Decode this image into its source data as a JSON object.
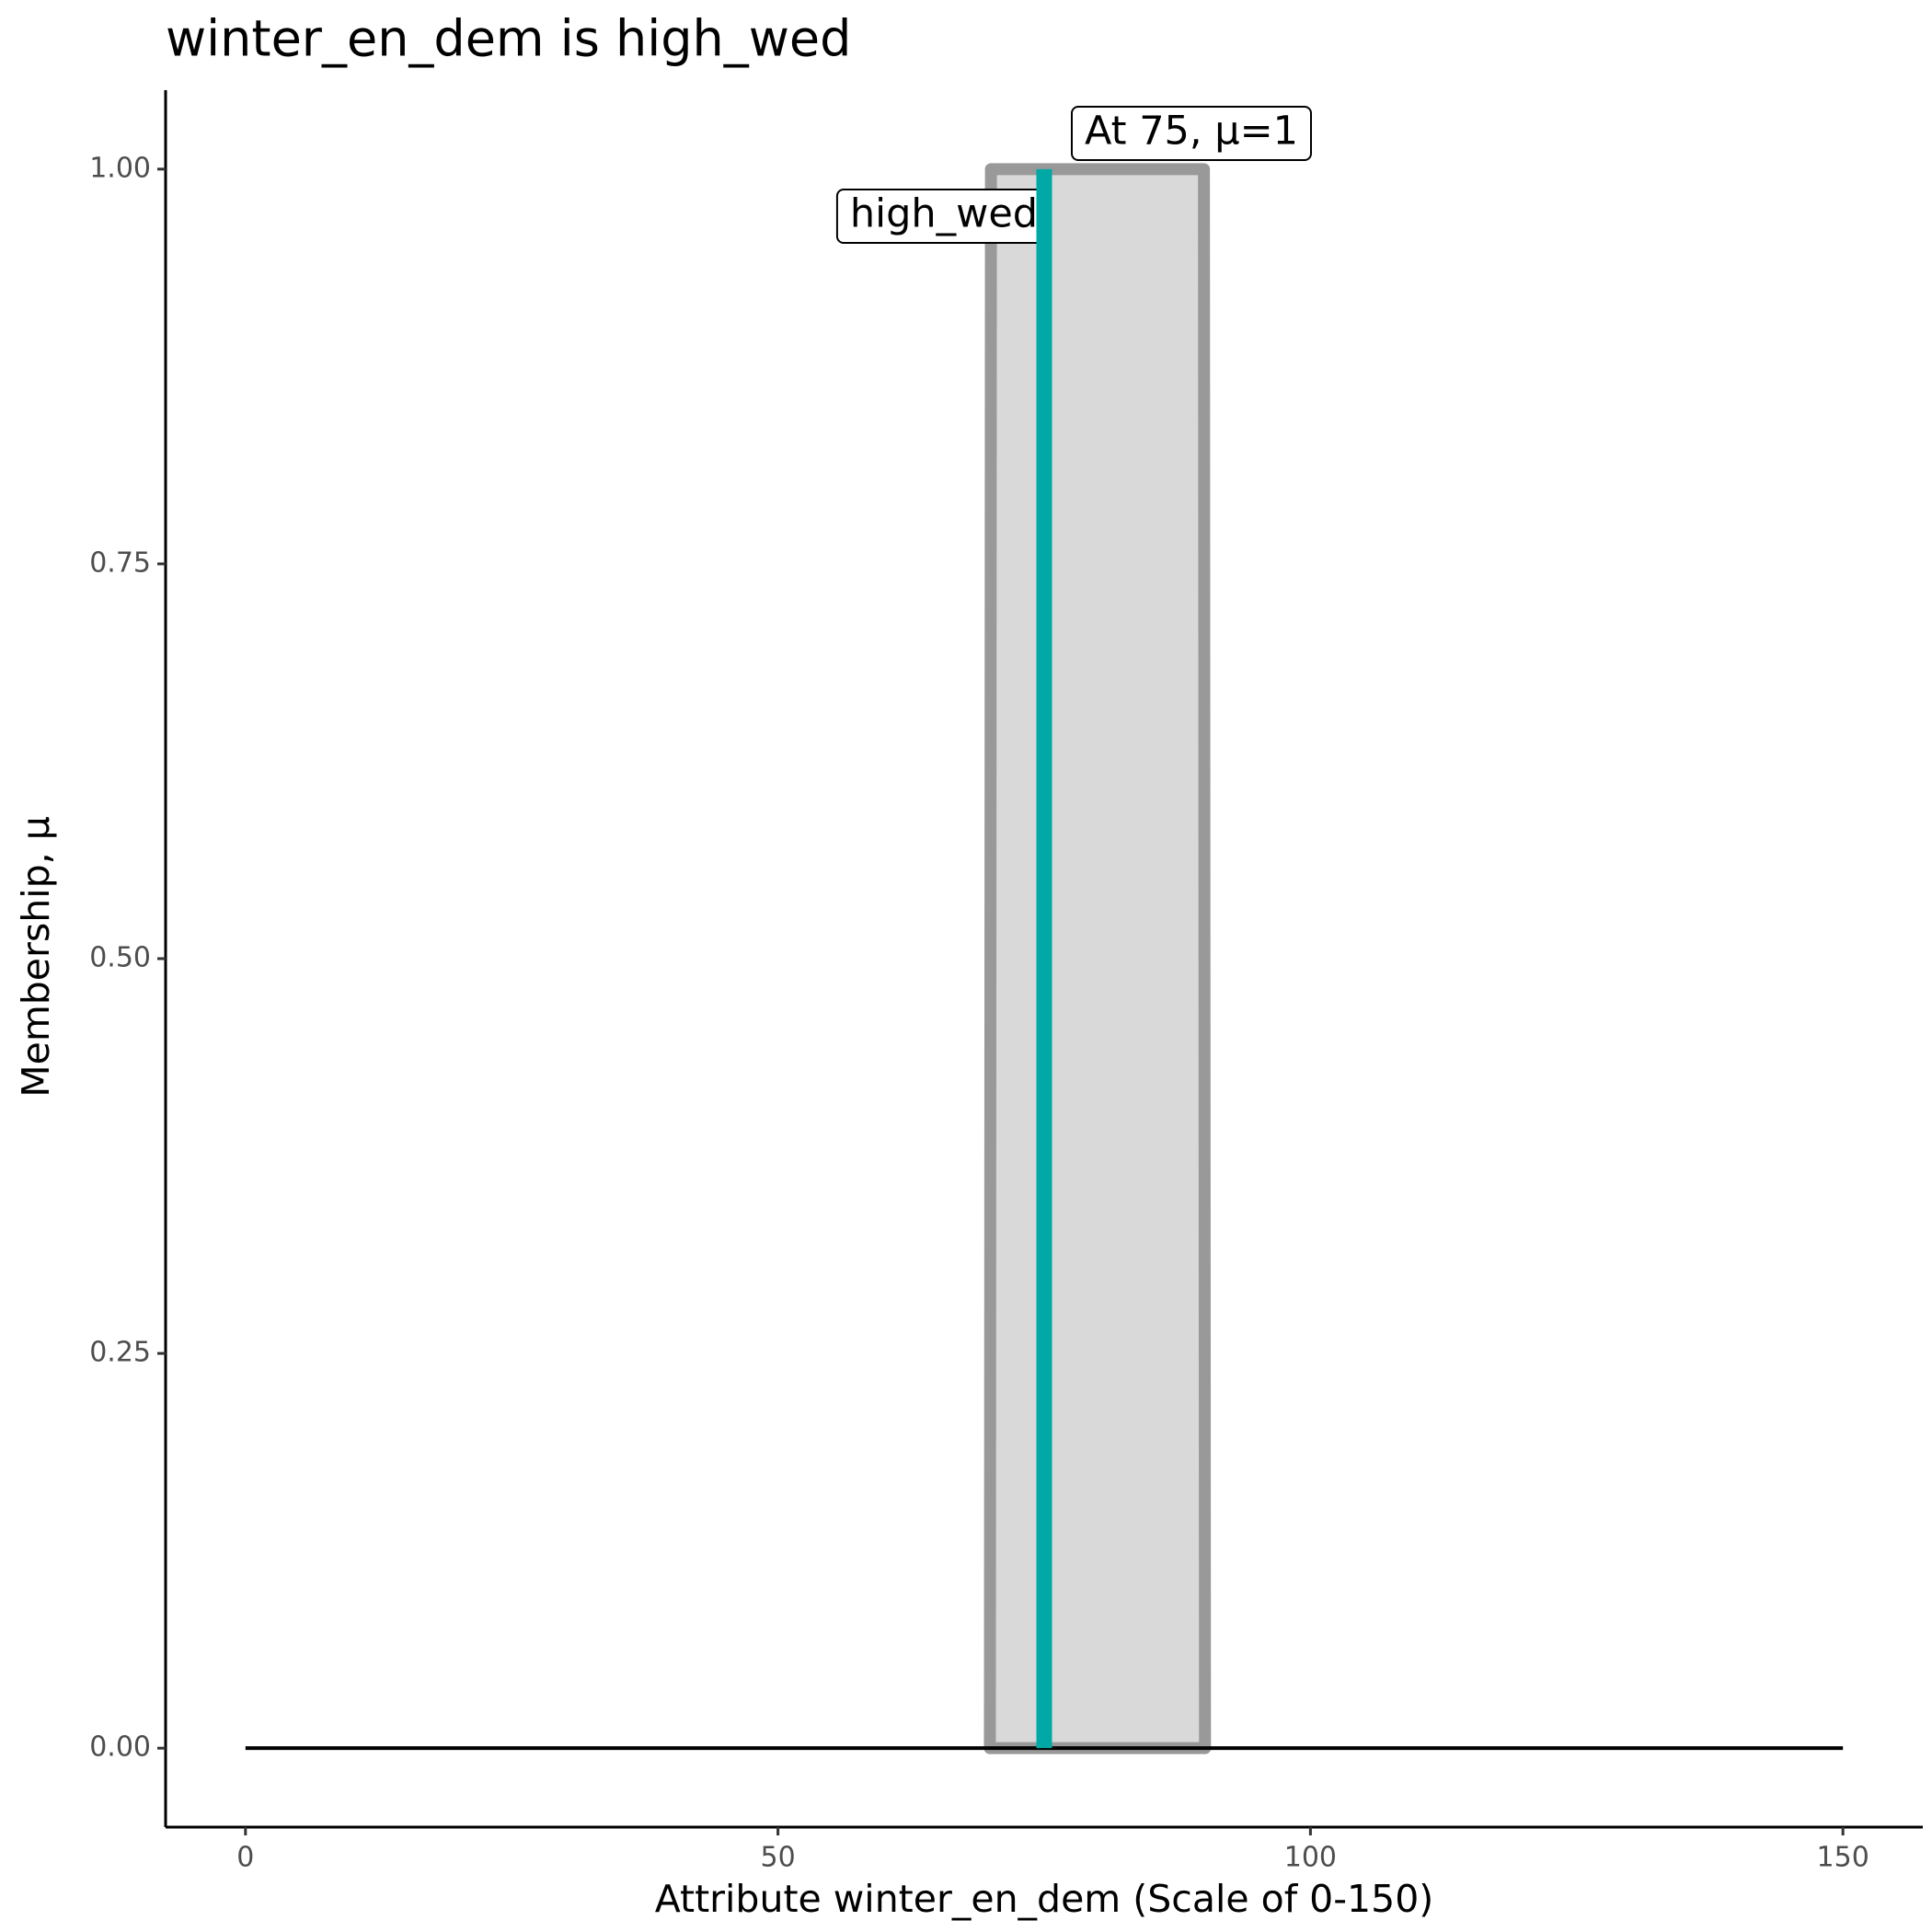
{
  "chart_data": {
    "type": "membership",
    "title": "winter_en_dem is high_wed",
    "x_label": "Attribute winter_en_dem (Scale of 0-150)",
    "y_label": "Membership, μ",
    "xlim": [
      -7.5,
      157.5
    ],
    "ylim": [
      -0.05,
      1.05
    ],
    "xticks": [
      0,
      50,
      100,
      150
    ],
    "yticks": [
      {
        "value": 0,
        "label": "0.00"
      },
      {
        "value": 0.25,
        "label": "0.25"
      },
      {
        "value": 0.5,
        "label": "0.50"
      },
      {
        "value": 0.75,
        "label": "0.75"
      },
      {
        "value": 1,
        "label": "1.00"
      }
    ],
    "membership": {
      "x": [
        69.9,
        70,
        90,
        90.1
      ],
      "values": [
        0,
        1,
        1,
        0
      ],
      "color": "#999999",
      "fill": "#d9d9d9"
    },
    "baseline": {
      "x": [
        0,
        150
      ],
      "values": [
        0,
        0
      ],
      "color": "#000000"
    },
    "marker": {
      "x": 75,
      "value": 1,
      "color": "#00a9a6"
    },
    "set_label": "high_wed",
    "marker_label": "At 75, μ=1"
  }
}
